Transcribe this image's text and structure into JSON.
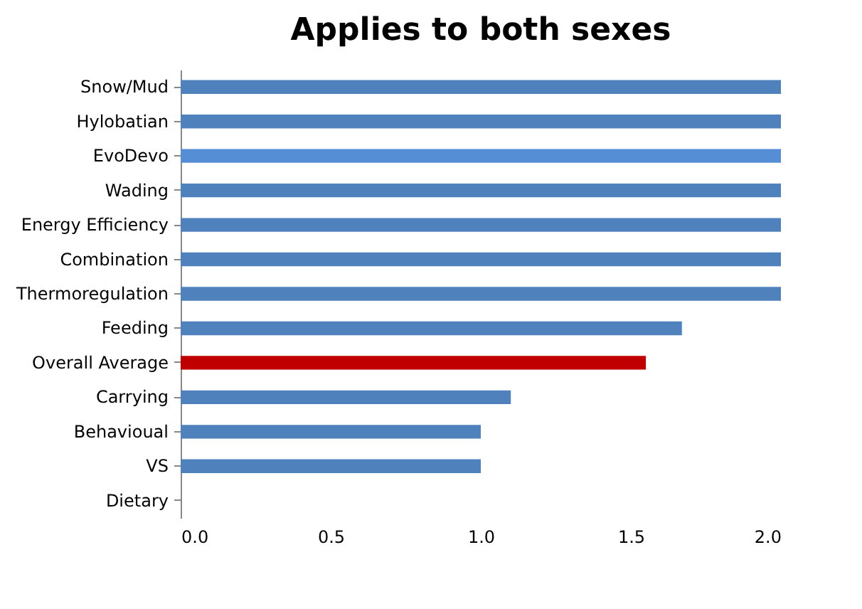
{
  "chart_data": {
    "type": "bar",
    "orientation": "horizontal",
    "title": "Applies to both sexes",
    "categories": [
      "Snow/Mud",
      "Hylobatian",
      "EvoDevo",
      "Wading",
      "Energy Efficiency",
      "Combination",
      "Thermoregulation",
      "Feeding",
      "Overall Average",
      "Carrying",
      "Behavioual",
      "VS",
      "Dietary"
    ],
    "values": [
      2,
      2,
      2,
      2,
      2,
      2,
      2,
      1.67,
      1.55,
      1.1,
      1,
      1,
      0
    ],
    "colors": [
      "#4f81bd",
      "#4f81bd",
      "#558ed5",
      "#4f81bd",
      "#4f81bd",
      "#4f81bd",
      "#4f81bd",
      "#4f81bd",
      "#c00000",
      "#4f81bd",
      "#4f81bd",
      "#4f81bd",
      "#4f81bd"
    ],
    "xlim": [
      0,
      2
    ],
    "xticks": [
      {
        "value": 0,
        "label": "0.0"
      },
      {
        "value": 0.5,
        "label": "0.5"
      },
      {
        "value": 1,
        "label": "1.0"
      },
      {
        "value": 1.5,
        "label": "1.5"
      },
      {
        "value": 2,
        "label": "2.0"
      }
    ],
    "grid": false
  }
}
